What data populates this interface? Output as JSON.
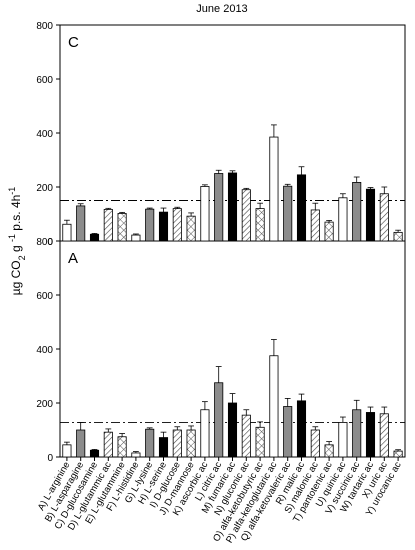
{
  "chart_data": {
    "type": "bar",
    "title": "June 2013",
    "ylabel_parts": {
      "main": "µg CO",
      "sub": "2",
      "mid": " g ",
      "sup1": "-1",
      "mid2": " p.s. 4h",
      "sup2": "-1"
    },
    "ylim": [
      0,
      800
    ],
    "yticks": [
      "0",
      "200",
      "400",
      "600",
      "800"
    ],
    "grid": false,
    "categories": [
      "A) L-arginine",
      "B) L-asparagine",
      "C) D-glucosamine",
      "D) L-glutammic ac",
      "E) L-glutammine",
      "F) L-histidine",
      "G) L-lysine",
      "H) L-serine",
      "I) D-glucose",
      "J) D-mannose",
      "K) ascorbic ac",
      "L) citric ac",
      "M) fumaric ac",
      "N) gluconic ac",
      "O) alfa-ketobutyric ac",
      "P) alfa-ketoglutaric ac",
      "Q) alfa-ketovaleric ac",
      "R) malic ac",
      "S) malonic ac",
      "T) pantotenic ac",
      "U) quinic ac",
      "V) succinic ac",
      "W) tartaric ac",
      "X) uric ac",
      "Y) urocanic ac"
    ],
    "fills": [
      "white",
      "grey",
      "black",
      "hatch",
      "cross",
      "white",
      "grey",
      "black",
      "hatch",
      "cross",
      "white",
      "grey",
      "black",
      "hatch",
      "cross",
      "white",
      "grey",
      "black",
      "hatch",
      "cross",
      "white",
      "grey",
      "black",
      "hatch",
      "cross"
    ],
    "colors": {
      "grey": "#8c8c8c",
      "black": "#000000",
      "white": "#ffffff",
      "pattern": "#444444"
    },
    "panels": [
      {
        "label": "C",
        "reference_line": 150,
        "values": [
          62,
          130,
          25,
          117,
          102,
          22,
          118,
          107,
          120,
          92,
          202,
          250,
          252,
          190,
          120,
          385,
          203,
          245,
          115,
          70,
          160,
          217,
          192,
          175,
          32
        ],
        "errors": [
          15,
          8,
          3,
          4,
          4,
          4,
          4,
          15,
          5,
          12,
          6,
          12,
          8,
          5,
          20,
          45,
          7,
          30,
          25,
          6,
          15,
          20,
          6,
          25,
          8
        ]
      },
      {
        "label": "A",
        "reference_line": 128,
        "values": [
          45,
          100,
          25,
          92,
          75,
          15,
          103,
          72,
          100,
          100,
          175,
          275,
          200,
          155,
          110,
          375,
          187,
          208,
          100,
          45,
          128,
          175,
          165,
          160,
          22
        ],
        "errors": [
          10,
          28,
          3,
          12,
          12,
          5,
          5,
          20,
          12,
          15,
          30,
          60,
          35,
          20,
          20,
          60,
          30,
          25,
          12,
          12,
          20,
          35,
          20,
          25,
          5
        ]
      }
    ]
  }
}
